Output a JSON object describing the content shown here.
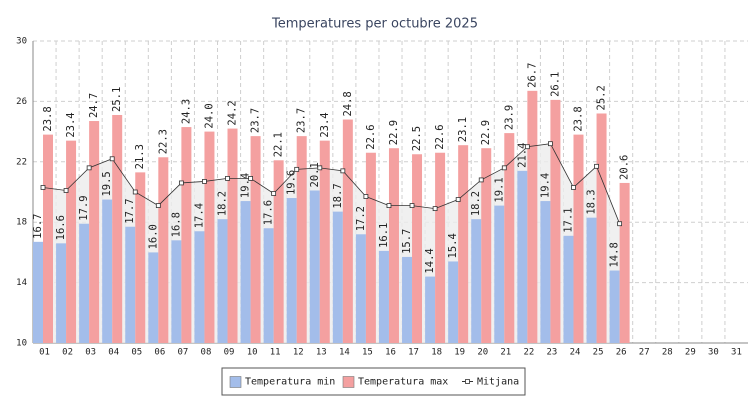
{
  "chart_data": {
    "type": "bar",
    "title": "Temperatures per octubre 2025",
    "categories": [
      "01",
      "02",
      "03",
      "04",
      "05",
      "06",
      "07",
      "08",
      "09",
      "10",
      "11",
      "12",
      "13",
      "14",
      "15",
      "16",
      "17",
      "18",
      "19",
      "20",
      "21",
      "22",
      "23",
      "24",
      "25",
      "26",
      "27",
      "28",
      "29",
      "30",
      "31"
    ],
    "ylim": [
      10,
      30
    ],
    "yticks": [
      10,
      14,
      18,
      22,
      26,
      30
    ],
    "grid": true,
    "legend": "bottom",
    "series": [
      {
        "name": "Temperatura min",
        "color": "#a3bdea",
        "type": "bar",
        "values": [
          16.7,
          16.6,
          17.9,
          19.5,
          17.7,
          16.0,
          16.8,
          17.4,
          18.2,
          19.4,
          17.6,
          19.6,
          20.1,
          18.7,
          17.2,
          16.1,
          15.7,
          14.4,
          15.4,
          18.2,
          19.1,
          21.4,
          19.4,
          17.1,
          18.3,
          14.8,
          null,
          null,
          null,
          null,
          null
        ],
        "value_labels": [
          "16.7",
          "16.6",
          "17.9",
          "19.5",
          "17.7",
          "16.0",
          "16.8",
          "17.4",
          "18.2",
          "19.4",
          "17.6",
          "19.6",
          "20.1",
          "18.7",
          "17.2",
          "16.1",
          "15.7",
          "14.4",
          "15.4",
          "18.2",
          "19.1",
          "21.4",
          "19.4",
          "17.1",
          "18.3",
          "14.8",
          null,
          null,
          null,
          null,
          null
        ]
      },
      {
        "name": "Temperatura max",
        "color": "#f4a0a0",
        "type": "bar",
        "values": [
          23.8,
          23.4,
          24.7,
          25.1,
          21.3,
          22.3,
          24.3,
          24.0,
          24.2,
          23.7,
          22.1,
          23.7,
          23.4,
          24.8,
          22.6,
          22.9,
          22.5,
          22.6,
          23.1,
          22.9,
          23.9,
          26.7,
          26.1,
          23.8,
          25.2,
          20.6,
          null,
          null,
          null,
          null,
          null
        ],
        "value_labels": [
          "23.8",
          "23.4",
          "24.7",
          "25.1",
          "21.3",
          "22.3",
          "24.3",
          "24.0",
          "24.2",
          "23.7",
          "22.1",
          "23.7",
          "23.4",
          "24.8",
          "22.6",
          "22.9",
          "22.5",
          "22.6",
          "23.1",
          "22.9",
          "23.9",
          "26.7",
          "26.1",
          "23.8",
          "25.2",
          "20.6",
          null,
          null,
          null,
          null,
          null
        ]
      },
      {
        "name": "Mitjana",
        "color": "#333333",
        "type": "line",
        "values": [
          20.3,
          20.1,
          21.6,
          22.2,
          20.0,
          19.1,
          20.6,
          20.7,
          20.9,
          20.9,
          19.9,
          21.5,
          21.6,
          21.4,
          19.7,
          19.1,
          19.1,
          18.9,
          19.5,
          20.8,
          21.6,
          23.0,
          23.2,
          20.3,
          21.7,
          17.9,
          null,
          null,
          null,
          null,
          null
        ]
      }
    ]
  }
}
